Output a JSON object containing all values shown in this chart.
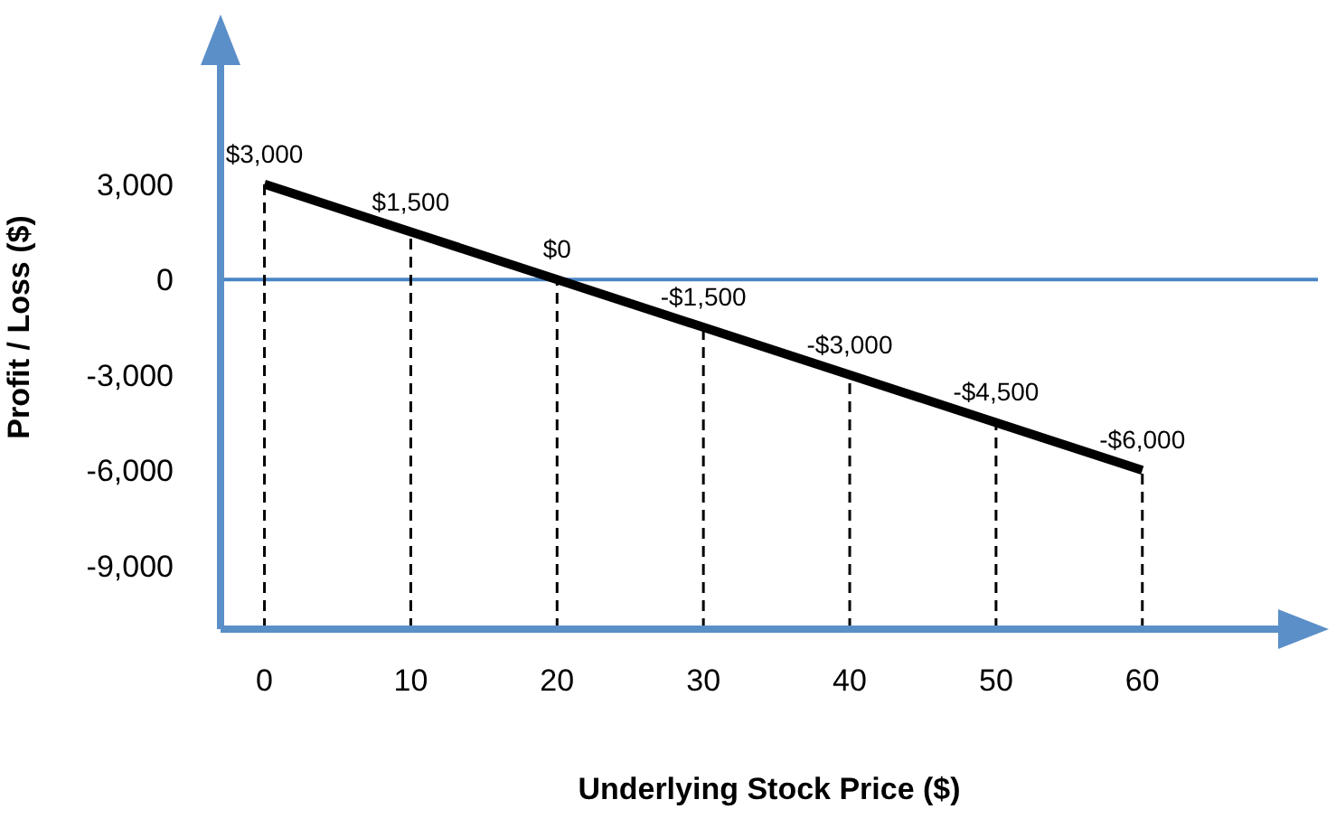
{
  "chart_data": {
    "type": "line",
    "xlabel": "Underlying Stock Price ($)",
    "ylabel": "Profit / Loss ($)",
    "x": [
      0,
      10,
      20,
      30,
      40,
      50,
      60
    ],
    "series": [
      {
        "color": "#000000",
        "values": [
          3000,
          1500,
          0,
          -1500,
          -3000,
          -4500,
          -6000
        ],
        "value_labels": [
          "$3,000",
          "$1,500",
          "$0",
          "-$1,500",
          "-$3,000",
          "-$4,500",
          "-$6,000"
        ]
      }
    ],
    "xlim": [
      -3,
      72
    ],
    "xticks": [
      0,
      10,
      20,
      30,
      40,
      50,
      60
    ],
    "ylim": [
      -11000,
      8000
    ],
    "yticks": [
      {
        "value": 3000,
        "label": "3,000"
      },
      0,
      {
        "value": -3000,
        "label": "-3,000"
      },
      {
        "value": -6000,
        "label": "-6,000"
      },
      {
        "value": -9000,
        "label": "-9,000"
      }
    ],
    "ref_lines": [
      {
        "axis": "y",
        "value": 0,
        "color": "#4a86c5",
        "line_style": "solid"
      },
      {
        "axis": "x",
        "value": 0,
        "color": "#000000",
        "line_style": "dashed"
      },
      {
        "axis": "x",
        "value": 10,
        "color": "#000000",
        "line_style": "dashed"
      },
      {
        "axis": "x",
        "value": 20,
        "color": "#000000",
        "line_style": "dashed"
      },
      {
        "axis": "x",
        "value": 30,
        "color": "#000000",
        "line_style": "dashed"
      },
      {
        "axis": "x",
        "value": 40,
        "color": "#000000",
        "line_style": "dashed"
      },
      {
        "axis": "x",
        "value": 50,
        "color": "#000000",
        "line_style": "dashed"
      },
      {
        "axis": "x",
        "value": 60,
        "color": "#000000",
        "line_style": "dashed"
      }
    ],
    "marker": "none",
    "grid": false,
    "legend": false
  }
}
